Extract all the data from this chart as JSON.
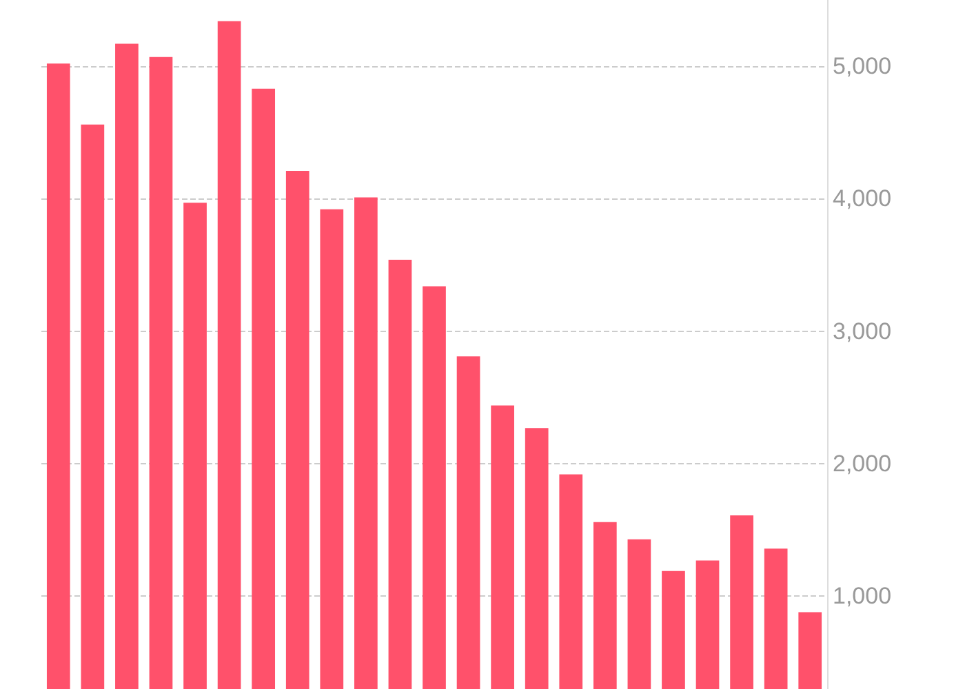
{
  "chart_data": {
    "type": "bar",
    "categories": [
      null,
      null,
      null,
      null,
      null,
      null,
      null,
      null,
      null,
      null,
      null,
      null,
      null,
      null,
      null,
      null,
      null,
      null,
      null,
      null,
      null,
      null,
      null
    ],
    "values": [
      5020,
      4560,
      5170,
      5070,
      3970,
      5340,
      4830,
      4210,
      3920,
      4010,
      3540,
      3340,
      2810,
      2440,
      2270,
      1920,
      1560,
      1430,
      1190,
      1270,
      1610,
      1360,
      880
    ],
    "color": "#ff516b",
    "ylim": [
      300,
      5500
    ],
    "yticks": [
      {
        "value": 1000,
        "label": "1,000"
      },
      {
        "value": 2000,
        "label": "2,000"
      },
      {
        "value": 3000,
        "label": "3,000"
      },
      {
        "value": 4000,
        "label": "4,000"
      },
      {
        "value": 5000,
        "label": "5,000"
      }
    ],
    "grid": "y",
    "tick_labels": "y"
  }
}
